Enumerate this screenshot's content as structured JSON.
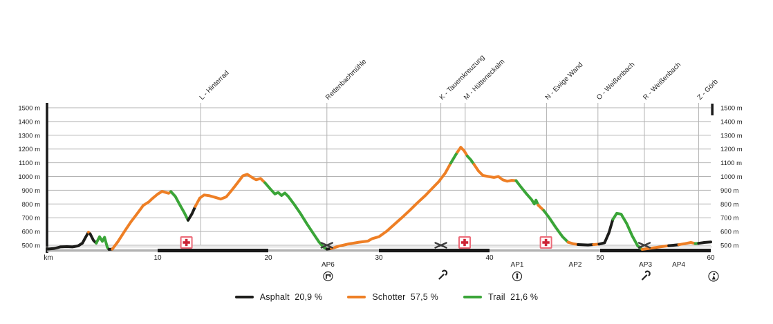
{
  "colors": {
    "grid": "#b3b3b3",
    "axis": "#1a1a1a",
    "text": "#1a1a1a",
    "scale_bar_gray": "#b3b3b3",
    "scale_bar_black": "#1a1a1a",
    "first_aid_border": "#ec6a78",
    "first_aid_cross": "#cd2436",
    "trail_marker": "#3c3c3c"
  },
  "chart_data": {
    "type": "line",
    "title": "",
    "xlabel": "km",
    "ylabel": "m",
    "x_range": [
      0,
      60
    ],
    "y_range": [
      500,
      1500
    ],
    "grid": true,
    "legend_position": "bottom-center",
    "x_ticks": [
      10,
      20,
      30,
      40,
      50,
      60
    ],
    "y_ticks": [
      {
        "value": 500,
        "label": "500 m"
      },
      {
        "value": 600,
        "label": "600 m"
      },
      {
        "value": 700,
        "label": "700 m"
      },
      {
        "value": 800,
        "label": "800 m"
      },
      {
        "value": 900,
        "label": "900 m"
      },
      {
        "value": 1000,
        "label": "1000 m"
      },
      {
        "value": 1100,
        "label": "1100 m"
      },
      {
        "value": 1200,
        "label": "1200 m"
      },
      {
        "value": 1300,
        "label": "1300 m"
      },
      {
        "value": 1400,
        "label": "1400 m"
      },
      {
        "value": 1500,
        "label": "1500 m"
      }
    ],
    "surface_colors": {
      "A": "#1d1d1b",
      "S": "#ee7f25",
      "T": "#3aa538"
    },
    "surface_names": {
      "A": "Asphalt",
      "S": "Schotter",
      "T": "Trail"
    },
    "points": [
      [
        0.0,
        472,
        "A"
      ],
      [
        0.6,
        476,
        "A"
      ],
      [
        1.2,
        488,
        "A"
      ],
      [
        1.8,
        490,
        "A"
      ],
      [
        2.3,
        488,
        "A"
      ],
      [
        2.8,
        495,
        "A"
      ],
      [
        3.2,
        515,
        "A"
      ],
      [
        3.5,
        560,
        "A"
      ],
      [
        3.75,
        595,
        "S"
      ],
      [
        3.9,
        583,
        "A"
      ],
      [
        4.2,
        535,
        "A"
      ],
      [
        4.45,
        515,
        "T"
      ],
      [
        4.75,
        562,
        "T"
      ],
      [
        5.0,
        528,
        "T"
      ],
      [
        5.2,
        558,
        "T"
      ],
      [
        5.45,
        485,
        "T"
      ],
      [
        5.6,
        470,
        "A"
      ],
      [
        5.9,
        472,
        "S"
      ],
      [
        6.4,
        525,
        "S"
      ],
      [
        7.0,
        600,
        "S"
      ],
      [
        7.6,
        672,
        "S"
      ],
      [
        8.2,
        735,
        "S"
      ],
      [
        8.7,
        790,
        "S"
      ],
      [
        9.2,
        815,
        "S"
      ],
      [
        9.5,
        838,
        "S"
      ],
      [
        10.0,
        872,
        "S"
      ],
      [
        10.4,
        892,
        "S"
      ],
      [
        10.7,
        885,
        "S"
      ],
      [
        11.0,
        878,
        "S"
      ],
      [
        11.2,
        890,
        "T"
      ],
      [
        11.6,
        855,
        "T"
      ],
      [
        12.0,
        795,
        "T"
      ],
      [
        12.4,
        738,
        "T"
      ],
      [
        12.75,
        682,
        "A"
      ],
      [
        13.1,
        728,
        "A"
      ],
      [
        13.4,
        782,
        "S"
      ],
      [
        13.8,
        842,
        "S"
      ],
      [
        14.2,
        866,
        "S"
      ],
      [
        14.7,
        860,
        "S"
      ],
      [
        15.2,
        848,
        "S"
      ],
      [
        15.7,
        836,
        "S"
      ],
      [
        16.2,
        852,
        "S"
      ],
      [
        16.7,
        900,
        "S"
      ],
      [
        17.2,
        952,
        "S"
      ],
      [
        17.7,
        1005,
        "S"
      ],
      [
        18.1,
        1016,
        "S"
      ],
      [
        18.5,
        995,
        "S"
      ],
      [
        18.9,
        976,
        "S"
      ],
      [
        19.3,
        986,
        "S"
      ],
      [
        19.7,
        955,
        "T"
      ],
      [
        20.2,
        908,
        "T"
      ],
      [
        20.6,
        873,
        "T"
      ],
      [
        20.9,
        884,
        "T"
      ],
      [
        21.2,
        862,
        "T"
      ],
      [
        21.5,
        880,
        "T"
      ],
      [
        21.8,
        856,
        "T"
      ],
      [
        22.3,
        802,
        "T"
      ],
      [
        22.9,
        732,
        "T"
      ],
      [
        23.5,
        655,
        "T"
      ],
      [
        24.1,
        582,
        "T"
      ],
      [
        24.6,
        522,
        "T"
      ],
      [
        25.0,
        486,
        "T"
      ],
      [
        25.3,
        472,
        "A"
      ],
      [
        25.7,
        476,
        "S"
      ],
      [
        26.4,
        494,
        "S"
      ],
      [
        27.3,
        510,
        "S"
      ],
      [
        28.2,
        522,
        "S"
      ],
      [
        29.0,
        530,
        "S"
      ],
      [
        29.4,
        548,
        "S"
      ],
      [
        30.0,
        562,
        "S"
      ],
      [
        30.7,
        602,
        "S"
      ],
      [
        31.4,
        652,
        "S"
      ],
      [
        32.1,
        702,
        "S"
      ],
      [
        32.8,
        755,
        "S"
      ],
      [
        33.5,
        810,
        "S"
      ],
      [
        34.2,
        862,
        "S"
      ],
      [
        34.8,
        912,
        "S"
      ],
      [
        35.4,
        962,
        "S"
      ],
      [
        36.0,
        1025,
        "S"
      ],
      [
        36.5,
        1098,
        "T"
      ],
      [
        36.9,
        1152,
        "T"
      ],
      [
        37.1,
        1178,
        "S"
      ],
      [
        37.4,
        1213,
        "S"
      ],
      [
        37.7,
        1188,
        "S"
      ],
      [
        38.0,
        1148,
        "T"
      ],
      [
        38.3,
        1122,
        "T"
      ],
      [
        38.6,
        1088,
        "S"
      ],
      [
        39.0,
        1040,
        "S"
      ],
      [
        39.4,
        1008,
        "S"
      ],
      [
        39.9,
        1000,
        "S"
      ],
      [
        40.4,
        993,
        "S"
      ],
      [
        40.8,
        1000,
        "S"
      ],
      [
        41.2,
        976,
        "S"
      ],
      [
        41.6,
        966,
        "S"
      ],
      [
        42.0,
        972,
        "S"
      ],
      [
        42.4,
        970,
        "T"
      ],
      [
        42.8,
        928,
        "T"
      ],
      [
        43.3,
        878,
        "T"
      ],
      [
        43.8,
        832,
        "T"
      ],
      [
        44.05,
        800,
        "T"
      ],
      [
        44.2,
        828,
        "T"
      ],
      [
        44.4,
        792,
        "S"
      ],
      [
        44.9,
        753,
        "T"
      ],
      [
        45.4,
        700,
        "T"
      ],
      [
        46.0,
        628,
        "T"
      ],
      [
        46.6,
        562,
        "T"
      ],
      [
        47.1,
        522,
        "S"
      ],
      [
        47.6,
        510,
        "S"
      ],
      [
        48.0,
        505,
        "A"
      ],
      [
        48.9,
        502,
        "A"
      ],
      [
        49.4,
        505,
        "S"
      ],
      [
        49.9,
        508,
        "A"
      ],
      [
        50.4,
        518,
        "A"
      ],
      [
        50.8,
        592,
        "A"
      ],
      [
        51.15,
        688,
        "T"
      ],
      [
        51.5,
        732,
        "T"
      ],
      [
        51.9,
        726,
        "T"
      ],
      [
        52.4,
        658,
        "T"
      ],
      [
        52.9,
        568,
        "T"
      ],
      [
        53.4,
        495,
        "T"
      ],
      [
        53.8,
        470,
        "S"
      ],
      [
        54.4,
        477,
        "S"
      ],
      [
        55.2,
        486,
        "S"
      ],
      [
        56.2,
        497,
        "A"
      ],
      [
        57.1,
        504,
        "S"
      ],
      [
        57.7,
        512,
        "S"
      ],
      [
        58.2,
        520,
        "S"
      ],
      [
        58.6,
        512,
        "T"
      ],
      [
        58.9,
        514,
        "A"
      ],
      [
        59.4,
        520,
        "A"
      ],
      [
        60.0,
        524,
        "A"
      ]
    ],
    "waypoints": [
      {
        "km": 13.9,
        "label": "L - Hinterrad"
      },
      {
        "km": 25.3,
        "label": "Rettenbachmühle"
      },
      {
        "km": 35.6,
        "label": "K - Tauernkreuzung"
      },
      {
        "km": 37.8,
        "label": "M - Hütteneckalm"
      },
      {
        "km": 45.15,
        "label": "N - Ewige Wand"
      },
      {
        "km": 49.8,
        "label": "O - Weißenbach"
      },
      {
        "km": 54.0,
        "label": "R - Weißenbach"
      },
      {
        "km": 58.9,
        "label": "Z - Görb"
      }
    ],
    "first_aid_km": [
      12.6,
      37.75,
      45.1
    ],
    "crossing_km": [
      25.3,
      35.6,
      54.0
    ],
    "trailside_wrench_km": [
      35.75
    ],
    "checkpoints": [
      {
        "label": "AP6",
        "km": 25.4,
        "icon": "tap-circle"
      },
      {
        "label": "AP1",
        "km": 42.5,
        "icon": "figure-circle"
      },
      {
        "label": "AP2",
        "km": 47.75,
        "icon": null
      },
      {
        "label": "AP3",
        "km": 54.1,
        "icon": "wrench"
      },
      {
        "label": "AP4",
        "km": 57.1,
        "icon": null
      }
    ],
    "finish_icon": {
      "km": 60.25,
      "icon": "hiker-circle"
    },
    "legend": [
      {
        "name": "Asphalt",
        "percent": "20,9 %",
        "color": "#1d1d1b"
      },
      {
        "name": "Schotter",
        "percent": "57,5 %",
        "color": "#ee7f25"
      },
      {
        "name": "Trail",
        "percent": "21,6 %",
        "color": "#3aa538"
      }
    ]
  }
}
